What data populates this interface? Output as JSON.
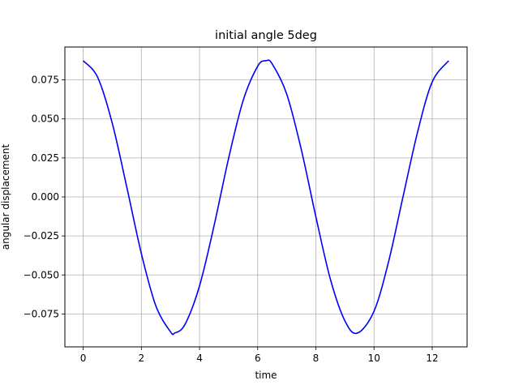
{
  "chart_data": {
    "type": "line",
    "title": "initial angle 5deg",
    "xlabel": "time",
    "ylabel": "angular displacement",
    "xlim": [
      -0.63,
      13.2
    ],
    "ylim": [
      -0.0961,
      0.0961
    ],
    "xticks": [
      0,
      2,
      4,
      6,
      8,
      10,
      12
    ],
    "xtick_labels": [
      "0",
      "2",
      "4",
      "6",
      "8",
      "10",
      "12"
    ],
    "yticks": [
      -0.075,
      -0.05,
      -0.025,
      0.0,
      0.025,
      0.05,
      0.075
    ],
    "ytick_labels": [
      "−0.075",
      "−0.050",
      "−0.025",
      "0.000",
      "0.025",
      "0.050",
      "0.075"
    ],
    "grid": true,
    "line_color": "#0000ff",
    "series": [
      {
        "x": [
          0.0,
          0.5,
          1.0,
          1.5,
          2.0,
          2.5,
          3.0,
          3.1416,
          3.5,
          4.0,
          4.5,
          5.0,
          5.5,
          6.0,
          6.2832,
          6.5,
          7.0,
          7.5,
          8.0,
          8.5,
          9.0,
          9.4248,
          10.0,
          10.5,
          11.0,
          11.5,
          12.0,
          12.5664
        ],
        "y": [
          0.0873,
          0.0766,
          0.0472,
          0.0062,
          -0.0363,
          -0.0699,
          -0.0864,
          -0.0873,
          -0.0817,
          -0.057,
          -0.0184,
          0.0248,
          0.0618,
          0.0838,
          0.0873,
          0.0852,
          0.0658,
          0.0303,
          -0.0127,
          -0.0528,
          -0.0795,
          -0.0873,
          -0.0732,
          -0.0415,
          0.0004,
          0.0418,
          0.0737,
          0.0873
        ]
      }
    ]
  }
}
